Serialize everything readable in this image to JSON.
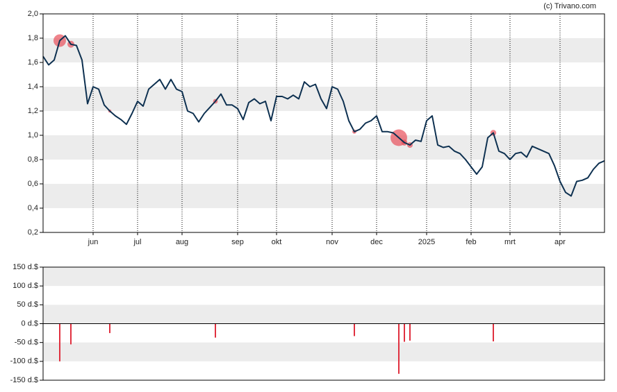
{
  "chart_data": [
    {
      "type": "line",
      "credit": "(c) Trivano.com",
      "categories": [
        null,
        null,
        null,
        null,
        null,
        null,
        null,
        null,
        null,
        "jun",
        null,
        null,
        null,
        null,
        null,
        null,
        null,
        "jul",
        null,
        null,
        null,
        null,
        null,
        null,
        null,
        "aug",
        null,
        null,
        null,
        null,
        null,
        null,
        null,
        null,
        null,
        "sep",
        null,
        null,
        null,
        null,
        null,
        null,
        "okt",
        null,
        null,
        null,
        null,
        null,
        null,
        null,
        null,
        null,
        "nov",
        null,
        null,
        null,
        null,
        null,
        null,
        null,
        "dec",
        null,
        null,
        null,
        null,
        null,
        null,
        null,
        null,
        "2025",
        null,
        null,
        null,
        null,
        null,
        null,
        null,
        "feb",
        null,
        null,
        null,
        null,
        null,
        null,
        "mrt",
        null,
        null,
        null,
        null,
        null,
        null,
        null,
        null,
        "apr",
        null,
        null,
        null,
        null,
        null,
        null,
        null,
        null
      ],
      "series": [
        {
          "color": "#0d3050",
          "values": [
            1.65,
            1.58,
            1.62,
            1.78,
            1.82,
            1.75,
            1.74,
            1.62,
            1.26,
            1.4,
            1.38,
            1.25,
            1.2,
            1.16,
            1.13,
            1.09,
            1.18,
            1.28,
            1.24,
            1.38,
            1.42,
            1.46,
            1.38,
            1.46,
            1.38,
            1.36,
            1.2,
            1.18,
            1.11,
            1.18,
            1.23,
            1.28,
            1.34,
            1.25,
            1.25,
            1.22,
            1.13,
            1.27,
            1.3,
            1.26,
            1.28,
            1.12,
            1.32,
            1.32,
            1.3,
            1.33,
            1.3,
            1.44,
            1.4,
            1.42,
            1.3,
            1.22,
            1.4,
            1.38,
            1.28,
            1.12,
            1.03,
            1.05,
            1.1,
            1.12,
            1.16,
            1.03,
            1.03,
            1.02,
            0.98,
            0.94,
            0.92,
            0.96,
            0.95,
            1.12,
            1.16,
            0.92,
            0.9,
            0.91,
            0.87,
            0.85,
            0.8,
            0.74,
            0.68,
            0.74,
            0.98,
            1.02,
            0.87,
            0.85,
            0.8,
            0.85,
            0.86,
            0.82,
            0.91,
            0.89,
            0.87,
            0.85,
            0.75,
            0.62,
            0.53,
            0.5,
            0.62,
            0.63,
            0.65,
            0.72,
            0.77,
            0.79
          ]
        }
      ],
      "bubble_color": "#e8505b",
      "ylim": [
        0.2,
        2.0
      ],
      "yticks": [
        {
          "value": 0.2,
          "label": "0,2"
        },
        {
          "value": 0.4,
          "label": "0,4"
        },
        {
          "value": 0.6,
          "label": "0,6"
        },
        {
          "value": 0.8,
          "label": "0,8"
        },
        {
          "value": 1.0,
          "label": "1,0"
        },
        {
          "value": 1.2,
          "label": "1,2"
        },
        {
          "value": 1.4,
          "label": "1,4"
        },
        {
          "value": 1.6,
          "label": "1,6"
        },
        {
          "value": 1.8,
          "label": "1,8"
        },
        {
          "value": 2.0,
          "label": "2,0"
        }
      ],
      "grid": "bands"
    },
    {
      "type": "bar",
      "color": "#e0303f",
      "values": [
        null,
        null,
        null,
        -100,
        null,
        -55,
        null,
        null,
        null,
        null,
        null,
        null,
        -25,
        null,
        null,
        null,
        null,
        null,
        null,
        null,
        null,
        null,
        null,
        null,
        null,
        null,
        null,
        null,
        null,
        null,
        null,
        -37,
        null,
        null,
        null,
        null,
        null,
        null,
        null,
        null,
        null,
        null,
        null,
        null,
        null,
        null,
        null,
        null,
        null,
        null,
        null,
        null,
        null,
        null,
        null,
        null,
        -33,
        null,
        null,
        null,
        null,
        null,
        null,
        null,
        -133,
        -48,
        -45,
        null,
        null,
        null,
        null,
        null,
        null,
        null,
        null,
        null,
        null,
        null,
        null,
        null,
        null,
        -47,
        null,
        null,
        null,
        null,
        null,
        null,
        null,
        null,
        null,
        null,
        null,
        null,
        null,
        null,
        null,
        null,
        null,
        null,
        null,
        null
      ],
      "ylim": [
        -150,
        150
      ],
      "yticks": [
        {
          "value": -150,
          "label": "-150 d.$"
        },
        {
          "value": -100,
          "label": "-100 d.$"
        },
        {
          "value": -50,
          "label": "-50 d.$"
        },
        {
          "value": 0,
          "label": "0 d.$"
        },
        {
          "value": 50,
          "label": "50 d.$"
        },
        {
          "value": 100,
          "label": "100 d.$"
        },
        {
          "value": 150,
          "label": "150 d.$"
        }
      ],
      "grid": "bands"
    }
  ]
}
